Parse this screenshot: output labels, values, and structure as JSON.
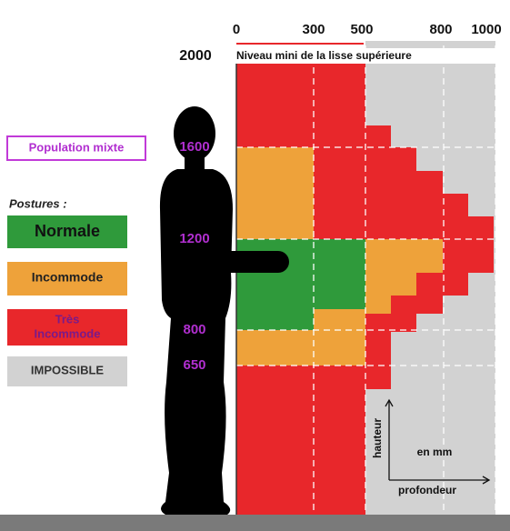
{
  "top_scale": [
    0,
    300,
    500,
    800,
    1000
  ],
  "level_label": "Niveau mini de la lisse supérieure",
  "heights": [
    2000,
    1600,
    1200,
    800,
    650
  ],
  "legend": {
    "population": "Population mixte",
    "title": "Postures :",
    "items": [
      {
        "lines": [
          "Normale"
        ]
      },
      {
        "lines": [
          "Incommode"
        ]
      },
      {
        "lines": [
          "Très",
          "Incommode"
        ]
      },
      {
        "lines": [
          "IMPOSSIBLE"
        ]
      }
    ]
  },
  "axes": {
    "vertical": "hauteur",
    "unit": "en mm",
    "horizontal": "profondeur"
  }
}
